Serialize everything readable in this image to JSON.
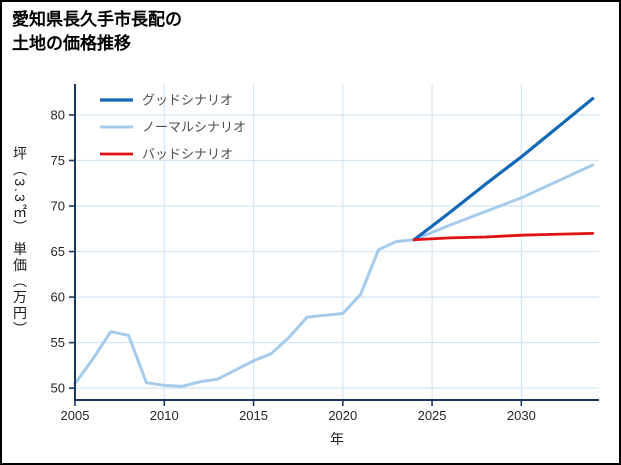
{
  "chart_data": {
    "type": "line",
    "title": "愛知県長久手市長配の\n土地の価格推移",
    "xlabel": "年",
    "ylabel": "坪（3.3㎡） 単価（万円）",
    "xlim": [
      2005,
      2034.35
    ],
    "ylim": [
      48.7,
      83.4
    ],
    "xticks": [
      2005,
      2010,
      2015,
      2020,
      2025,
      2030
    ],
    "yticks": [
      50,
      55,
      60,
      65,
      70,
      75,
      80
    ],
    "grid": true,
    "legend_position": "upper-left",
    "colors": {
      "axis": "#17375e",
      "grid": "#d4e6f4",
      "tick_label": "#262626",
      "legend_text": "#4d4d4d",
      "title": "#000000",
      "background": "#ffffff"
    },
    "series": [
      {
        "name": "グッドシナリオ",
        "color": "#1267b6",
        "width": 3.2,
        "z": 2,
        "x": [
          2024,
          2026,
          2028,
          2030,
          2032,
          2034
        ],
        "y": [
          66.3,
          69.3,
          72.4,
          75.4,
          78.6,
          81.8
        ]
      },
      {
        "name": "ノーマルシナリオ",
        "color": "#a4cbec",
        "width": 3,
        "z": 1,
        "x": [
          2005,
          2006,
          2007,
          2008,
          2009,
          2010,
          2011,
          2012,
          2013,
          2014,
          2015,
          2016,
          2017,
          2018,
          2019,
          2020,
          2021,
          2022,
          2023,
          2024,
          2026,
          2028,
          2030,
          2032,
          2034
        ],
        "y": [
          50.5,
          53.2,
          56.2,
          55.8,
          50.6,
          50.3,
          50.2,
          50.7,
          51.0,
          52.0,
          53.0,
          53.8,
          55.6,
          57.8,
          58.0,
          58.2,
          60.3,
          65.2,
          66.1,
          66.3,
          67.9,
          69.4,
          70.9,
          72.7,
          74.5
        ]
      },
      {
        "name": "バッドシナリオ",
        "color": "#e01212",
        "width": 2.8,
        "z": 3,
        "x": [
          2024,
          2026,
          2028,
          2030,
          2032,
          2034
        ],
        "y": [
          66.3,
          66.5,
          66.6,
          66.8,
          66.9,
          67.0
        ]
      }
    ]
  }
}
